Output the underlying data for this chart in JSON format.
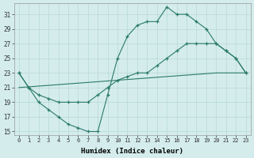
{
  "line1_x": [
    0,
    1,
    2,
    3,
    4,
    5,
    6,
    7,
    8,
    9,
    10,
    11,
    12,
    13,
    14,
    15,
    16,
    17,
    18,
    19,
    20,
    21,
    22,
    23
  ],
  "line1_y": [
    23,
    21,
    19,
    18,
    17,
    16,
    15.5,
    15,
    15,
    20,
    25,
    28,
    29.5,
    30,
    30,
    32,
    31,
    31,
    30,
    29,
    27,
    26,
    25,
    23
  ],
  "line2_x": [
    0,
    1,
    2,
    3,
    4,
    5,
    6,
    7,
    8,
    9,
    10,
    11,
    12,
    13,
    14,
    15,
    16,
    17,
    18,
    19,
    20,
    21,
    22,
    23
  ],
  "line2_y": [
    23,
    21,
    20,
    19.5,
    19,
    19,
    19,
    19,
    20,
    21,
    22,
    22.5,
    23,
    23,
    24,
    25,
    26,
    27,
    27,
    27,
    27,
    26,
    25,
    23
  ],
  "line3_x": [
    0,
    10,
    20,
    23
  ],
  "line3_y": [
    21,
    22,
    23,
    23
  ],
  "line_color": "#2a7a6a",
  "bg_color": "#d4ecec",
  "grid_color": "#b8d8d8",
  "xlabel": "Humidex (Indice chaleur)",
  "yticks": [
    15,
    17,
    19,
    21,
    23,
    25,
    27,
    29,
    31
  ],
  "xticks": [
    0,
    1,
    2,
    3,
    4,
    5,
    6,
    7,
    8,
    9,
    10,
    11,
    12,
    13,
    14,
    15,
    16,
    17,
    18,
    19,
    20,
    21,
    22,
    23
  ],
  "xlim": [
    -0.5,
    23.5
  ],
  "ylim": [
    14.5,
    32.5
  ],
  "figsize": [
    3.2,
    2.0
  ],
  "dpi": 100
}
